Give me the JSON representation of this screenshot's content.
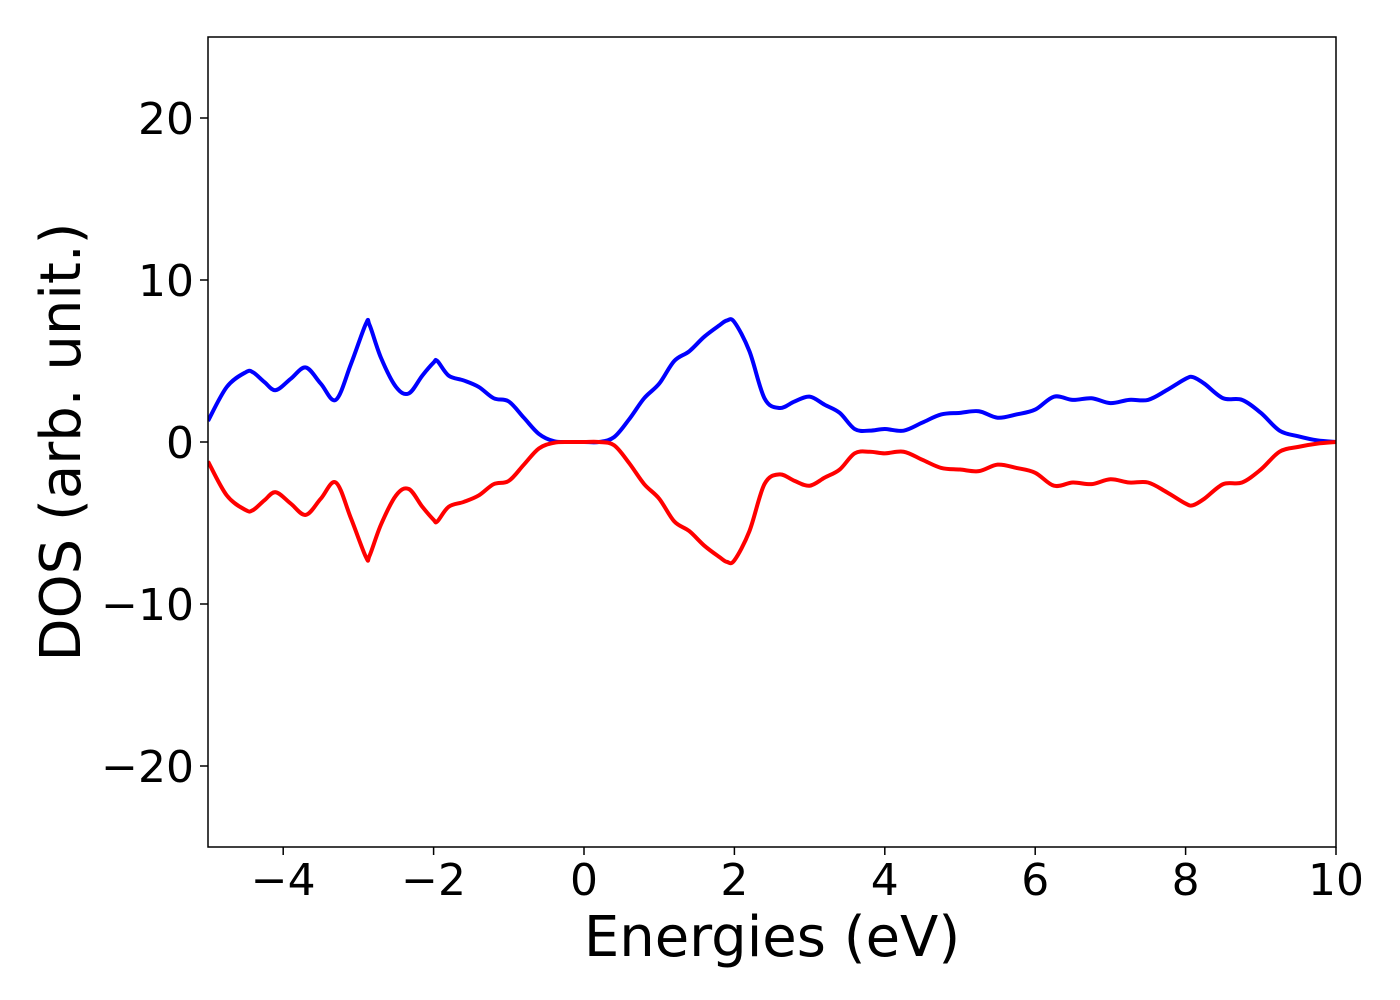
{
  "chart_data": {
    "type": "line",
    "title": "",
    "xlabel": "Energies (eV)",
    "ylabel": "DOS (arb. unit.)",
    "xlim": [
      -5,
      10
    ],
    "ylim": [
      -25,
      25
    ],
    "xticks": [
      -4,
      -2,
      0,
      2,
      4,
      6,
      8,
      10
    ],
    "xtick_labels": [
      "−4",
      "−2",
      "0",
      "2",
      "4",
      "6",
      "8",
      "10"
    ],
    "yticks": [
      -20,
      -10,
      0,
      10,
      20
    ],
    "ytick_labels": [
      "−20",
      "−10",
      "0",
      "10",
      "20"
    ],
    "grid": false,
    "legend": "none",
    "series": [
      {
        "color": "#0000ff",
        "x": [
          -5.0,
          -4.75,
          -4.5,
          -4.4,
          -4.25,
          -4.1,
          -3.9,
          -3.7,
          -3.5,
          -3.3,
          -3.1,
          -2.9,
          -2.85,
          -2.7,
          -2.5,
          -2.33,
          -2.15,
          -2.0,
          -1.95,
          -1.8,
          -1.6,
          -1.4,
          -1.2,
          -1.0,
          -0.8,
          -0.6,
          -0.4,
          -0.2,
          0.0,
          0.2,
          0.4,
          0.6,
          0.8,
          1.0,
          1.2,
          1.4,
          1.6,
          1.8,
          1.9,
          2.0,
          2.2,
          2.4,
          2.6,
          2.8,
          3.0,
          3.2,
          3.4,
          3.6,
          3.8,
          4.0,
          4.25,
          4.5,
          4.75,
          5.0,
          5.25,
          5.5,
          5.75,
          6.0,
          6.25,
          6.5,
          6.75,
          7.0,
          7.25,
          7.5,
          7.75,
          8.0,
          8.1,
          8.25,
          8.5,
          8.75,
          9.0,
          9.25,
          9.5,
          9.75,
          10.0
        ],
        "y": [
          1.3,
          3.4,
          4.3,
          4.3,
          3.7,
          3.2,
          3.9,
          4.6,
          3.6,
          2.6,
          4.8,
          7.3,
          7.2,
          5.2,
          3.4,
          3.0,
          4.1,
          4.9,
          5.0,
          4.1,
          3.8,
          3.4,
          2.7,
          2.5,
          1.5,
          0.5,
          0.05,
          0.0,
          0.0,
          0.0,
          0.3,
          1.4,
          2.7,
          3.6,
          5.0,
          5.6,
          6.5,
          7.2,
          7.5,
          7.4,
          5.6,
          2.7,
          2.1,
          2.5,
          2.8,
          2.3,
          1.8,
          0.8,
          0.7,
          0.8,
          0.7,
          1.2,
          1.7,
          1.8,
          1.9,
          1.5,
          1.7,
          2.0,
          2.8,
          2.6,
          2.7,
          2.4,
          2.6,
          2.6,
          3.2,
          3.9,
          4.0,
          3.6,
          2.7,
          2.6,
          1.8,
          0.7,
          0.35,
          0.1,
          0.0
        ]
      },
      {
        "color": "#ff0000",
        "x": [
          -5.0,
          -4.75,
          -4.5,
          -4.4,
          -4.25,
          -4.1,
          -3.9,
          -3.7,
          -3.5,
          -3.3,
          -3.1,
          -2.9,
          -2.85,
          -2.7,
          -2.5,
          -2.33,
          -2.15,
          -2.0,
          -1.95,
          -1.8,
          -1.6,
          -1.4,
          -1.2,
          -1.0,
          -0.8,
          -0.6,
          -0.4,
          -0.2,
          0.0,
          0.2,
          0.4,
          0.6,
          0.8,
          1.0,
          1.2,
          1.4,
          1.6,
          1.8,
          1.9,
          2.0,
          2.2,
          2.4,
          2.6,
          2.8,
          3.0,
          3.2,
          3.4,
          3.6,
          3.8,
          4.0,
          4.25,
          4.5,
          4.75,
          5.0,
          5.25,
          5.5,
          5.75,
          6.0,
          6.25,
          6.5,
          6.75,
          7.0,
          7.25,
          7.5,
          7.75,
          8.0,
          8.1,
          8.25,
          8.5,
          8.75,
          9.0,
          9.25,
          9.5,
          9.75,
          10.0
        ],
        "y": [
          -1.2,
          -3.3,
          -4.2,
          -4.2,
          -3.6,
          -3.1,
          -3.8,
          -4.5,
          -3.5,
          -2.5,
          -4.7,
          -7.1,
          -7.0,
          -5.1,
          -3.3,
          -2.9,
          -4.0,
          -4.8,
          -4.9,
          -4.0,
          -3.7,
          -3.3,
          -2.6,
          -2.4,
          -1.4,
          -0.4,
          -0.05,
          0.0,
          0.0,
          0.0,
          -0.2,
          -1.3,
          -2.6,
          -3.5,
          -4.9,
          -5.5,
          -6.4,
          -7.1,
          -7.4,
          -7.3,
          -5.5,
          -2.6,
          -2.0,
          -2.4,
          -2.7,
          -2.2,
          -1.7,
          -0.7,
          -0.6,
          -0.7,
          -0.6,
          -1.1,
          -1.6,
          -1.7,
          -1.8,
          -1.4,
          -1.6,
          -1.9,
          -2.7,
          -2.5,
          -2.6,
          -2.3,
          -2.5,
          -2.5,
          -3.1,
          -3.8,
          -3.9,
          -3.5,
          -2.6,
          -2.5,
          -1.7,
          -0.6,
          -0.3,
          -0.1,
          0.0
        ]
      }
    ]
  }
}
